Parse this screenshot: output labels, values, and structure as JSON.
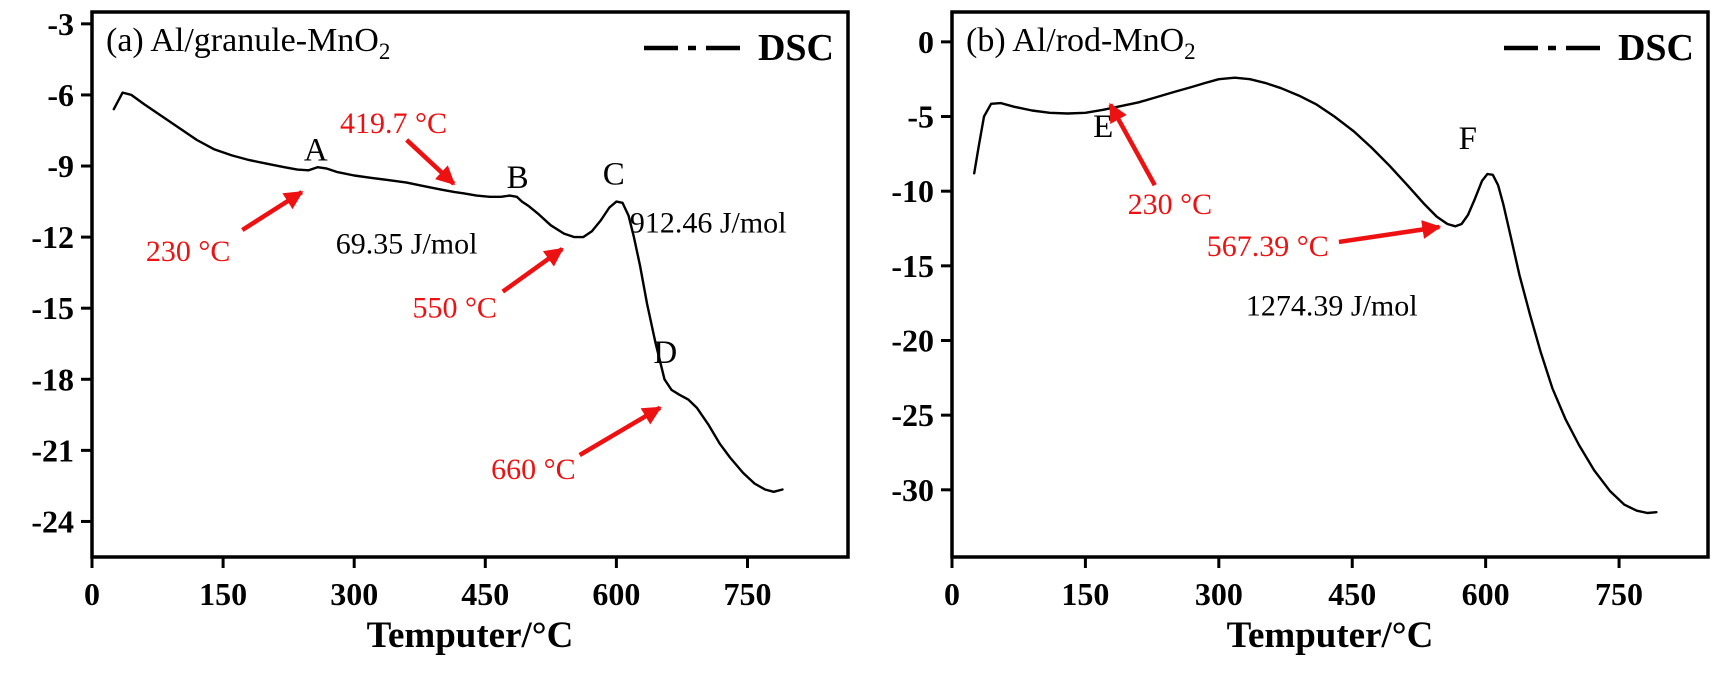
{
  "figure": {
    "background": "#ffffff",
    "accent_red": "#ee1111",
    "line_color": "#000000"
  },
  "chart_data": [
    {
      "type": "line",
      "panel": "a",
      "title_main": "(a) Al/granule-MnO",
      "title_sub": "2",
      "legend_label": "DSC",
      "xlabel": "Temputer/°C",
      "xlim": [
        0,
        865
      ],
      "ylim": [
        -25.5,
        -2.5
      ],
      "xticks": [
        0,
        150,
        300,
        450,
        600,
        750
      ],
      "yticks": [
        -3,
        -6,
        -9,
        -12,
        -15,
        -18,
        -21,
        -24
      ],
      "series": [
        {
          "name": "DSC",
          "x": [
            25,
            35,
            45,
            60,
            80,
            100,
            120,
            140,
            160,
            180,
            200,
            220,
            235,
            248,
            258,
            268,
            280,
            300,
            320,
            340,
            360,
            380,
            400,
            415,
            425,
            440,
            455,
            468,
            478,
            486,
            492,
            500,
            510,
            525,
            540,
            552,
            562,
            572,
            582,
            592,
            600,
            607,
            614,
            620,
            627,
            635,
            645,
            655,
            663,
            672,
            682,
            692,
            705,
            718,
            730,
            745,
            758,
            770,
            780,
            790
          ],
          "y": [
            -6.6,
            -5.9,
            -6.0,
            -6.4,
            -6.9,
            -7.4,
            -7.9,
            -8.3,
            -8.55,
            -8.75,
            -8.9,
            -9.05,
            -9.15,
            -9.18,
            -9.05,
            -9.1,
            -9.25,
            -9.4,
            -9.5,
            -9.6,
            -9.7,
            -9.85,
            -10.0,
            -10.1,
            -10.15,
            -10.25,
            -10.3,
            -10.3,
            -10.25,
            -10.3,
            -10.5,
            -10.7,
            -11.0,
            -11.5,
            -11.85,
            -12.0,
            -12.0,
            -11.75,
            -11.3,
            -10.75,
            -10.5,
            -10.55,
            -11.1,
            -12.0,
            -13.2,
            -14.8,
            -16.5,
            -18.0,
            -18.45,
            -18.65,
            -18.85,
            -19.2,
            -19.9,
            -20.7,
            -21.3,
            -21.95,
            -22.4,
            -22.65,
            -22.75,
            -22.65
          ]
        }
      ],
      "point_labels": [
        {
          "text": "A",
          "x": 256,
          "y": -8.35
        },
        {
          "text": "B",
          "x": 487,
          "y": -9.5
        },
        {
          "text": "C",
          "x": 597,
          "y": -9.35
        },
        {
          "text": "D",
          "x": 656,
          "y": -16.9
        }
      ],
      "annotations": [
        {
          "text": "230 °C",
          "color": "#ee1111",
          "x": 110,
          "y": -12.6,
          "arrow": {
            "x1": 172,
            "y1": -11.7,
            "x2": 240,
            "y2": -10.1
          }
        },
        {
          "text": "419.7 °C",
          "color": "#ee1111",
          "x": 345,
          "y": -7.2,
          "arrow": {
            "x1": 360,
            "y1": -7.9,
            "x2": 414,
            "y2": -9.75
          }
        },
        {
          "text": "550 °C",
          "color": "#ee1111",
          "x": 415,
          "y": -15.0,
          "arrow": {
            "x1": 470,
            "y1": -14.3,
            "x2": 538,
            "y2": -12.5
          }
        },
        {
          "text": "660 °C",
          "color": "#ee1111",
          "x": 505,
          "y": -21.8,
          "arrow": {
            "x1": 558,
            "y1": -21.2,
            "x2": 650,
            "y2": -19.2
          }
        },
        {
          "text": "69.35 J/mol",
          "color": "#000000",
          "x": 360,
          "y": -12.3
        },
        {
          "text": "912.46 J/mol",
          "color": "#000000",
          "x": 705,
          "y": -11.4
        }
      ]
    },
    {
      "type": "line",
      "panel": "b",
      "title_main": "(b) Al/rod-MnO",
      "title_sub": "2",
      "legend_label": "DSC",
      "xlabel": "Temputer/°C",
      "xlim": [
        0,
        850
      ],
      "ylim": [
        -34.5,
        2.0
      ],
      "xticks": [
        0,
        150,
        300,
        450,
        600,
        750
      ],
      "yticks": [
        0,
        -5,
        -10,
        -15,
        -20,
        -25,
        -30
      ],
      "series": [
        {
          "name": "DSC",
          "x": [
            25,
            30,
            36,
            44,
            55,
            70,
            90,
            110,
            130,
            150,
            170,
            190,
            210,
            230,
            250,
            268,
            285,
            300,
            318,
            335,
            352,
            370,
            390,
            410,
            430,
            452,
            472,
            492,
            512,
            530,
            545,
            557,
            566,
            573,
            580,
            588,
            596,
            602,
            608,
            614,
            620,
            628,
            638,
            650,
            662,
            675,
            690,
            705,
            722,
            740,
            756,
            770,
            782,
            792
          ],
          "y": [
            -8.8,
            -7.0,
            -5.0,
            -4.15,
            -4.1,
            -4.35,
            -4.6,
            -4.75,
            -4.8,
            -4.75,
            -4.55,
            -4.3,
            -4.05,
            -3.7,
            -3.35,
            -3.05,
            -2.75,
            -2.5,
            -2.4,
            -2.5,
            -2.75,
            -3.1,
            -3.6,
            -4.2,
            -5.0,
            -6.0,
            -7.1,
            -8.3,
            -9.6,
            -10.8,
            -11.7,
            -12.2,
            -12.35,
            -12.2,
            -11.6,
            -10.5,
            -9.3,
            -8.85,
            -8.9,
            -9.6,
            -10.9,
            -13.0,
            -15.6,
            -18.3,
            -20.8,
            -23.2,
            -25.3,
            -27.0,
            -28.7,
            -30.1,
            -31.0,
            -31.4,
            -31.55,
            -31.5
          ]
        }
      ],
      "point_labels": [
        {
          "text": "E",
          "x": 170,
          "y": -5.7
        },
        {
          "text": "F",
          "x": 580,
          "y": -6.5
        }
      ],
      "annotations": [
        {
          "text": "230 °C",
          "color": "#ee1111",
          "x": 245,
          "y": -10.9,
          "arrow": {
            "x1": 228,
            "y1": -9.6,
            "x2": 178,
            "y2": -4.2
          }
        },
        {
          "text": "567.39 °C",
          "color": "#ee1111",
          "x": 355,
          "y": -13.7,
          "arrow": {
            "x1": 435,
            "y1": -13.4,
            "x2": 548,
            "y2": -12.4
          }
        },
        {
          "text": "1274.39 J/mol",
          "color": "#000000",
          "x": 427,
          "y": -17.7
        }
      ]
    }
  ]
}
